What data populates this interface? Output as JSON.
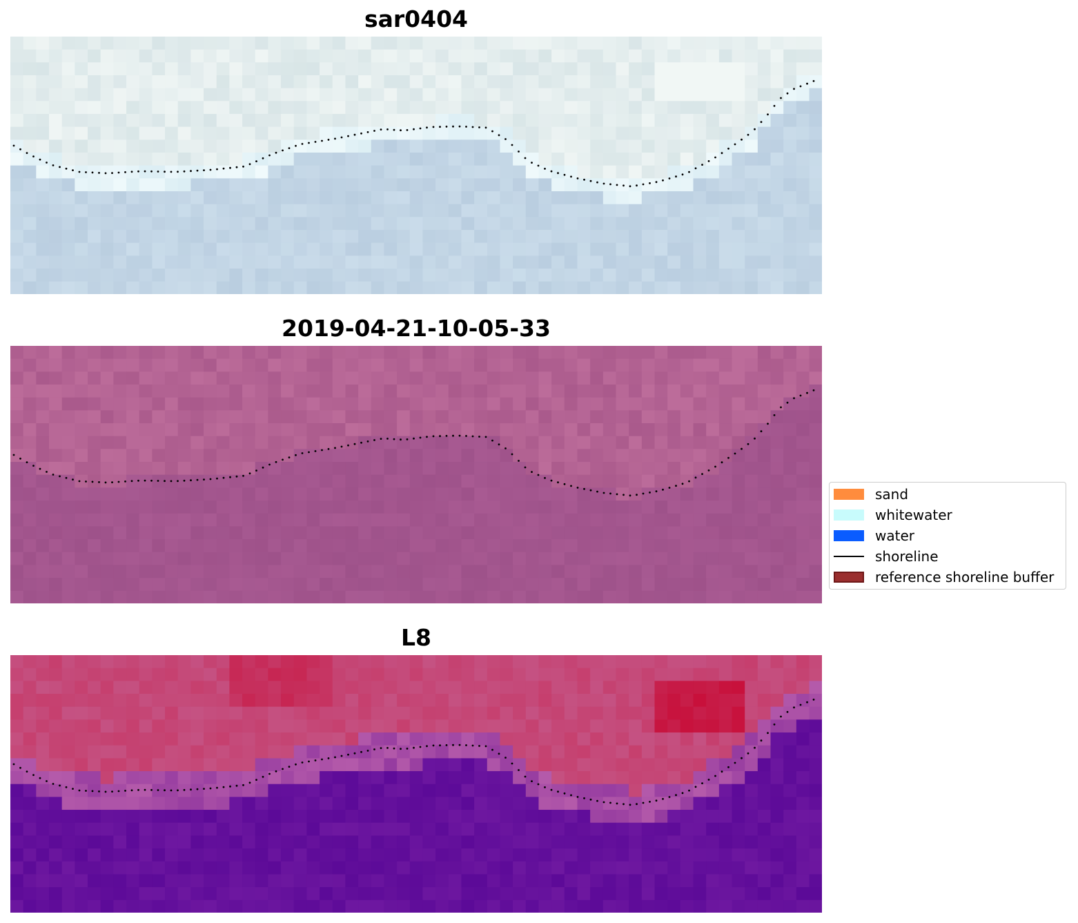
{
  "panels": [
    {
      "title": "sar0404",
      "style": "rgb"
    },
    {
      "title": "2019-04-21-10-05-33",
      "style": "index"
    },
    {
      "title": "L8",
      "style": "class"
    }
  ],
  "legend": {
    "items": [
      {
        "label": "sand",
        "kind": "patch",
        "color": "#ff8c3d"
      },
      {
        "label": "whitewater",
        "kind": "patch",
        "color": "#c8fbfc"
      },
      {
        "label": "water",
        "kind": "patch",
        "color": "#0a5cff"
      },
      {
        "label": "shoreline",
        "kind": "line",
        "color": "#000000"
      },
      {
        "label": "reference shoreline buffer",
        "kind": "patch",
        "color": "#9a2e2e",
        "edge": "#6e1717"
      }
    ]
  }
}
